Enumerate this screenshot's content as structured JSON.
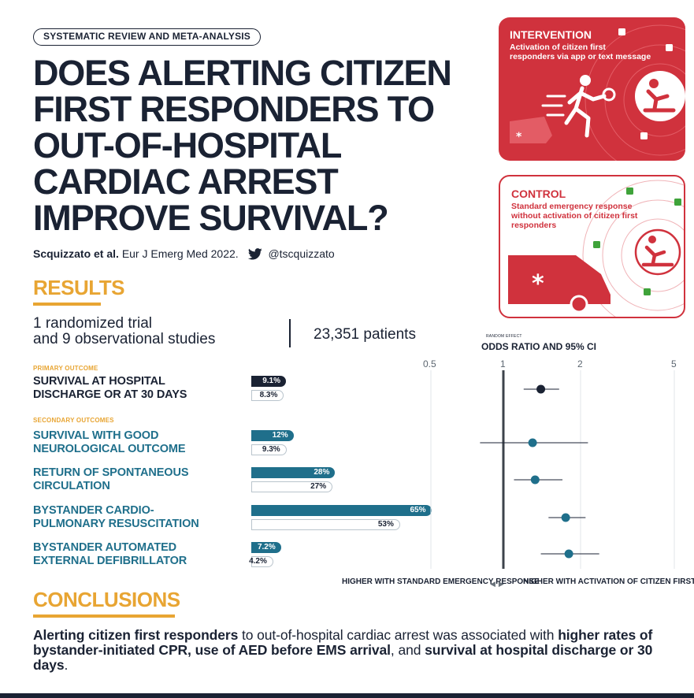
{
  "header": {
    "tag": "SYSTEMATIC REVIEW AND META-ANALYSIS",
    "title_lines": [
      "DOES ALERTING CITIZEN",
      "FIRST RESPONDERS TO",
      "OUT-OF-HOSPITAL",
      "CARDIAC ARREST",
      "IMPROVE SURVIVAL?"
    ],
    "citation_authors": "Scquizzato et al.",
    "citation_journal": "Eur J Emerg Med 2022.",
    "twitter_handle": "@tscquizzato"
  },
  "intervention": {
    "heading": "INTERVENTION",
    "text": "Activation of citizen first responders via app or text message"
  },
  "control": {
    "heading": "CONTROL",
    "text": "Standard emergency response without activation of citizen first responders"
  },
  "results": {
    "heading": "RESULTS",
    "studies_line1": "1 randomized trial",
    "studies_line2": "and 9 observational studies",
    "patients": "23,351 patients",
    "primary_label": "PRIMARY OUTCOME",
    "secondary_label": "SECONDARY OUTCOMES"
  },
  "chart_data": {
    "type": "forest",
    "title": "ODDS RATIO AND 95% CI",
    "subtitle": "RANDOM EFFECT",
    "x_ticks": [
      "0.5",
      "1",
      "2",
      "5"
    ],
    "x_tick_values": [
      0.5,
      1,
      2,
      5
    ],
    "x_scale": "log",
    "reference_line": 1,
    "left_direction_label": "HIGHER WITH STANDARD EMERGENCY RESPONSE",
    "right_direction_label": "HIGHER WITH ACTIVATION OF CITIZEN FIRST RESPONDERS",
    "colors": {
      "primary": "#1a2233",
      "secondary": "#1f6f8b",
      "accent": "#e8a533",
      "red": "#d0323d"
    },
    "outcomes": [
      {
        "name_line1": "SURVIVAL AT HOSPITAL",
        "name_line2": "DISCHARGE OR AT 30 DAYS",
        "group": "primary",
        "intervention_pct": 9.1,
        "control_pct": 8.3,
        "intervention_label": "9.1%",
        "control_label": "8.3%",
        "or": 1.4,
        "ci": [
          1.2,
          1.65
        ]
      },
      {
        "name_line1": "SURVIVAL WITH GOOD",
        "name_line2": "NEUROLOGICAL OUTCOME",
        "group": "secondary",
        "intervention_pct": 12,
        "control_pct": 9.3,
        "intervention_label": "12%",
        "control_label": "9.3%",
        "or": 1.3,
        "ci": [
          0.8,
          2.15
        ]
      },
      {
        "name_line1": "RETURN OF SPONTANEOUS",
        "name_line2": "CIRCULATION",
        "group": "secondary",
        "intervention_pct": 28,
        "control_pct": 27,
        "intervention_label": "28%",
        "control_label": "27%",
        "or": 1.33,
        "ci": [
          1.1,
          1.7
        ]
      },
      {
        "name_line1": "BYSTANDER CARDIO-",
        "name_line2": "PULMONARY RESUSCITATION",
        "group": "secondary",
        "intervention_pct": 65,
        "control_pct": 53,
        "intervention_label": "65%",
        "control_label": "53%",
        "or": 1.75,
        "ci": [
          1.5,
          2.1
        ]
      },
      {
        "name_line1": "BYSTANDER AUTOMATED",
        "name_line2": "EXTERNAL DEFIBRILLATOR",
        "group": "secondary",
        "intervention_pct": 7.2,
        "control_pct": 4.2,
        "intervention_label": "7.2%",
        "control_label": "4.2%",
        "or": 1.8,
        "ci": [
          1.4,
          2.4
        ]
      }
    ]
  },
  "conclusions": {
    "heading": "CONCLUSIONS",
    "part1_bold": "Alerting citizen first responders",
    "part2": " to out-of-hospital cardiac arrest  was associated with ",
    "part3_bold": "higher rates of bystander-initiated CPR, use of AED before EMS arrival",
    "part4": ", and ",
    "part5_bold": "survival at hospital discharge or 30 days",
    "part6": "."
  }
}
